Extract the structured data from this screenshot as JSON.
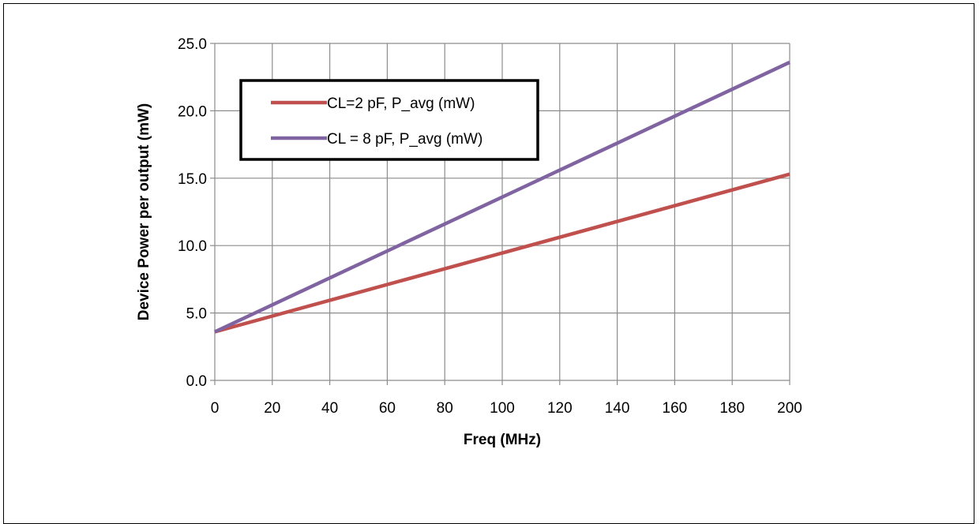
{
  "chart_data": {
    "type": "line",
    "xlabel": "Freq (MHz)",
    "ylabel": "Device Power per output (mW)",
    "xlim": [
      0,
      200
    ],
    "ylim": [
      0,
      25
    ],
    "x_ticks": [
      "0",
      "20",
      "40",
      "60",
      "80",
      "100",
      "120",
      "140",
      "160",
      "180",
      "200"
    ],
    "y_ticks": [
      "0.0",
      "5.0",
      "10.0",
      "15.0",
      "20.0",
      "25.0"
    ],
    "grid": true,
    "legend_position": "top-left",
    "series": [
      {
        "name": "CL=2 pF, P_avg (mW)",
        "color": "#c0504d",
        "x": [
          0,
          200
        ],
        "y": [
          3.6,
          15.3
        ]
      },
      {
        "name": "CL = 8 pF, P_avg (mW)",
        "color": "#8064a2",
        "x": [
          0,
          200
        ],
        "y": [
          3.6,
          23.6
        ]
      }
    ]
  }
}
